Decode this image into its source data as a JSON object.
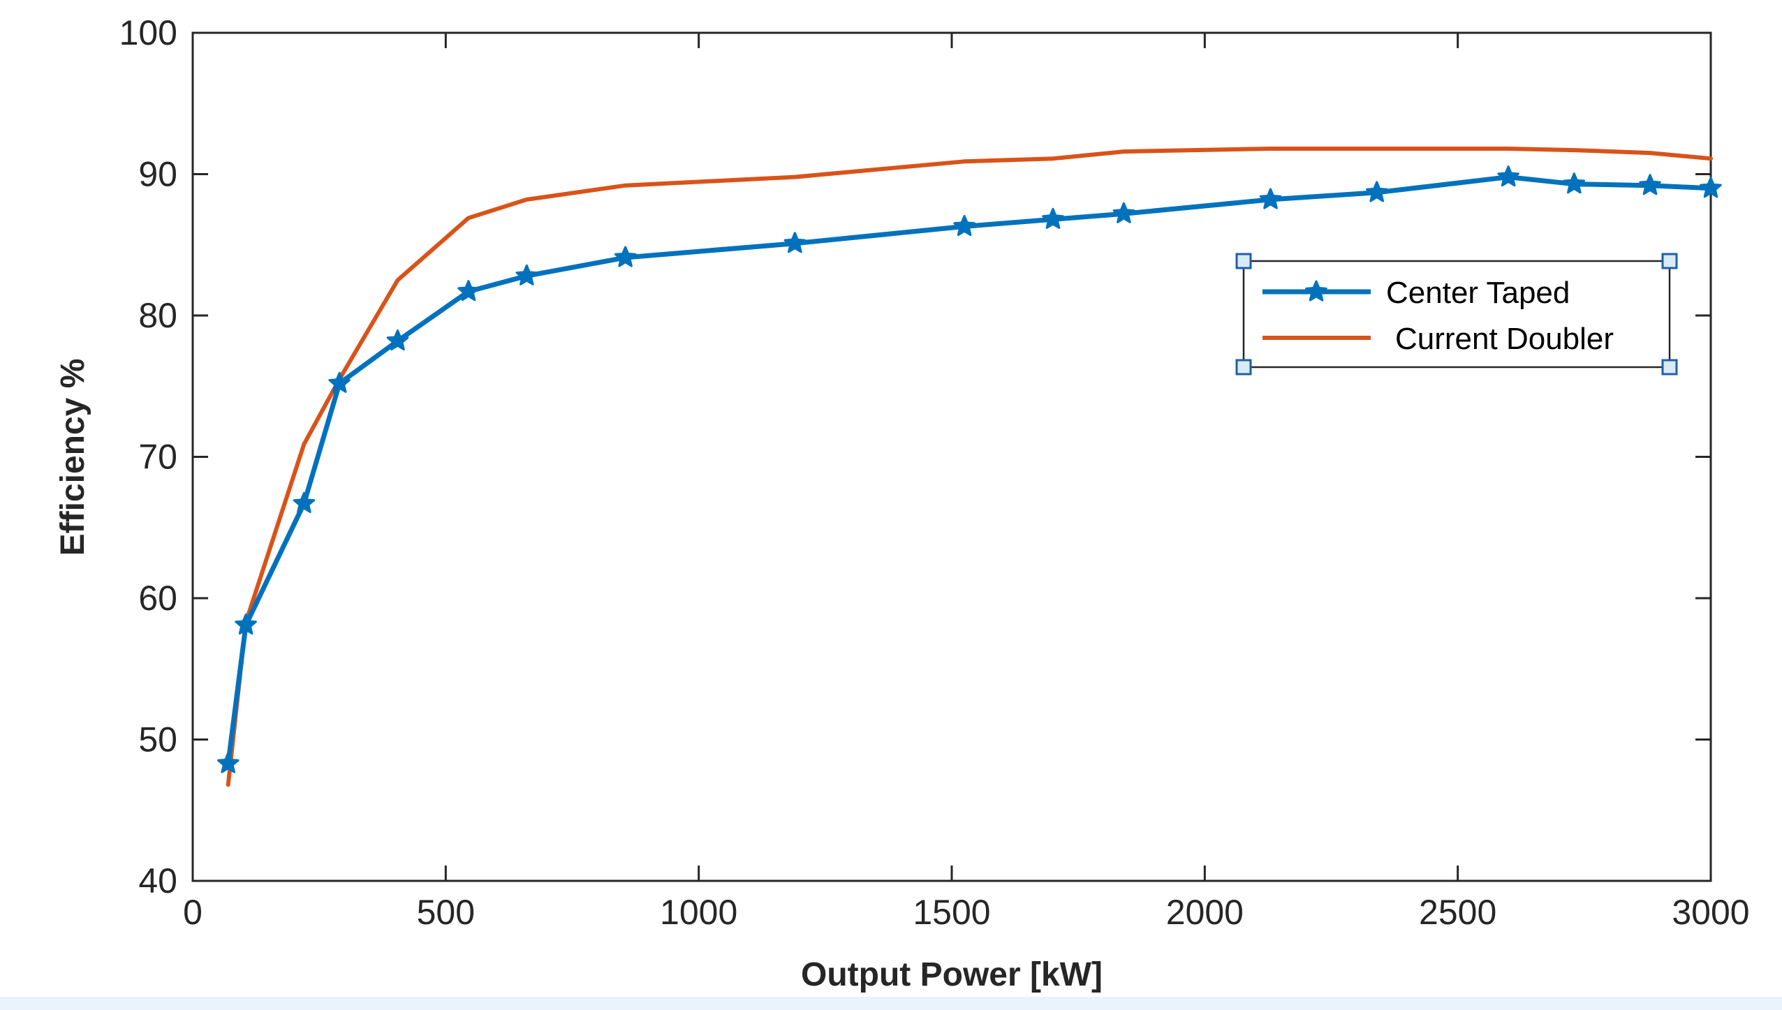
{
  "chart_data": {
    "type": "line",
    "title": "",
    "xlabel": "Output Power [kW]",
    "ylabel": "Efficiency %",
    "xlim": [
      0,
      3000
    ],
    "ylim": [
      40,
      100
    ],
    "xticks": [
      0,
      500,
      1000,
      1500,
      2000,
      2500,
      3000
    ],
    "yticks": [
      40,
      50,
      60,
      70,
      80,
      90,
      100
    ],
    "grid": false,
    "legend_position": "center-right",
    "series": [
      {
        "name": "Center Taped",
        "color": "#0072BD",
        "marker": "star",
        "x": [
          70,
          105,
          220,
          290,
          405,
          545,
          660,
          855,
          1190,
          1525,
          1700,
          1840,
          2130,
          2340,
          2600,
          2730,
          2880,
          3000
        ],
        "y": [
          48.3,
          58.1,
          66.7,
          75.2,
          78.2,
          81.7,
          82.8,
          84.1,
          85.1,
          86.3,
          86.8,
          87.2,
          88.2,
          88.7,
          89.8,
          89.3,
          89.2,
          89.0
        ]
      },
      {
        "name": "Current Doubler",
        "color": "#D95319",
        "marker": "none",
        "x": [
          70,
          105,
          220,
          290,
          405,
          545,
          660,
          855,
          1190,
          1525,
          1700,
          1840,
          2130,
          2340,
          2600,
          2730,
          2880,
          3000
        ],
        "y": [
          46.8,
          58.3,
          70.9,
          75.5,
          82.5,
          86.9,
          88.2,
          89.2,
          89.8,
          90.9,
          91.1,
          91.6,
          91.8,
          91.8,
          91.8,
          91.7,
          91.5,
          91.1
        ]
      }
    ]
  }
}
